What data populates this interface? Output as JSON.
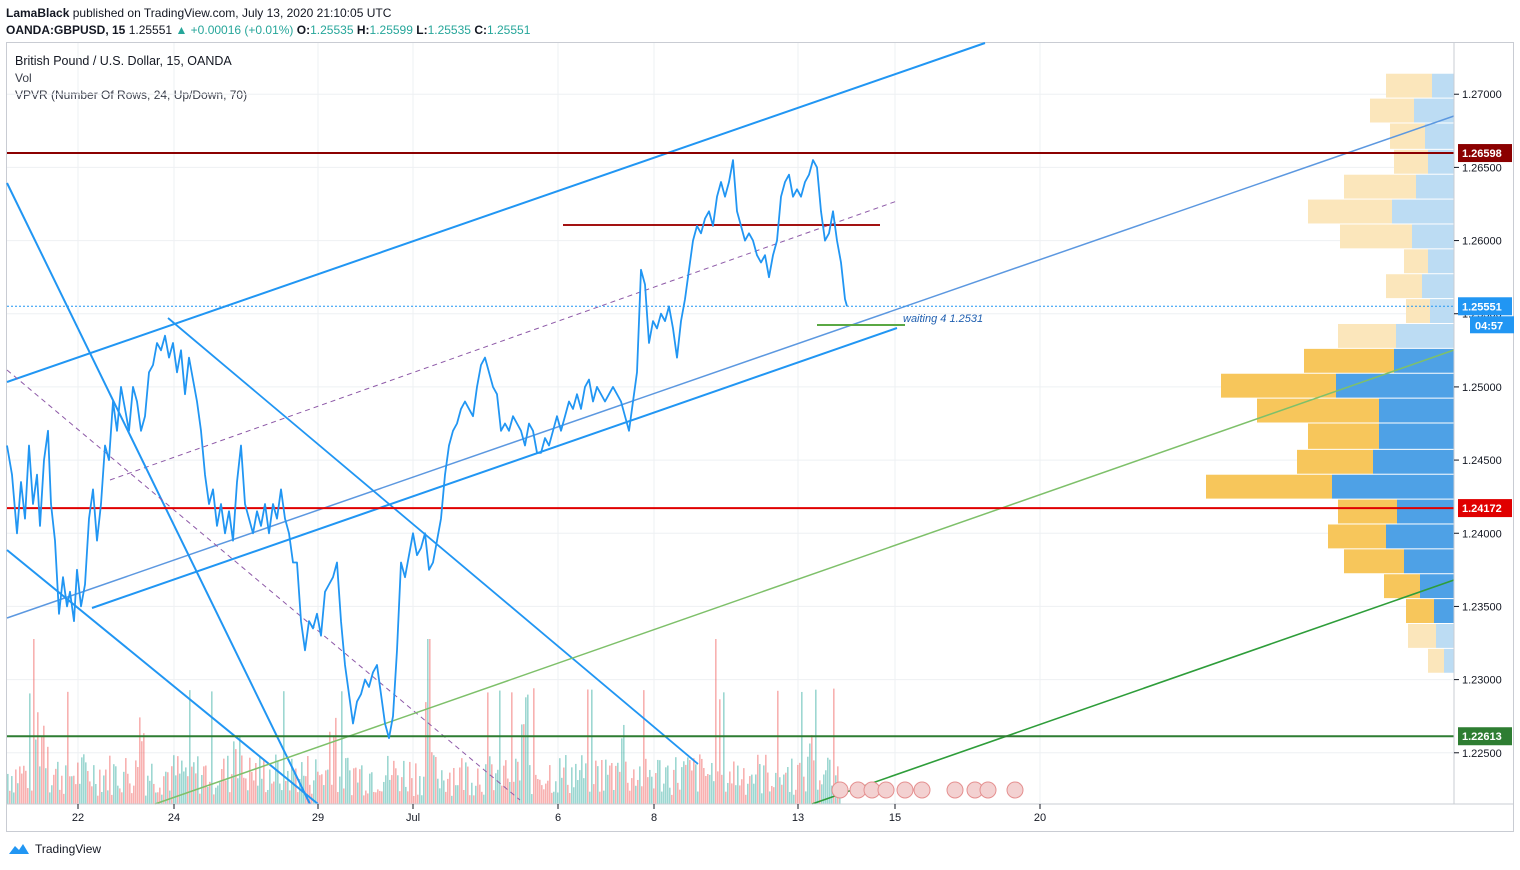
{
  "header": {
    "publisher": "LamaBlack",
    "published_text": "published on TradingView.com, July 13, 2020 21:10:05 UTC",
    "symbol": "OANDA:GBPUSD, 15",
    "last": "1.25551",
    "change": "+0.00016 (+0.01%)",
    "o_label": "O:",
    "o": "1.25535",
    "h_label": "H:",
    "h": "1.25599",
    "l_label": "L:",
    "l": "1.25535",
    "c_label": "C:",
    "c": "1.25551"
  },
  "legend": {
    "title": "British Pound / U.S. Dollar, 15, OANDA",
    "vol": "Vol",
    "vpvr": "VPVR (Number Of Rows, 24, Up/Down, 70)"
  },
  "annotation": "waiting 4 1.2531",
  "countdown": "04:57",
  "brand": "TradingView",
  "colors": {
    "price_line": "#2196f3",
    "resistance": "#8b0000",
    "support_red": "#e00000",
    "support_green": "#2e7d32"
  },
  "chart_data": {
    "type": "line",
    "ylim": [
      1.2215,
      1.2735
    ],
    "y_ticks": [
      "1.22500",
      "1.23000",
      "1.23500",
      "1.24000",
      "1.24500",
      "1.25000",
      "1.25500",
      "1.26000",
      "1.26500",
      "1.27000"
    ],
    "x_ticks": [
      "22",
      "24",
      "29",
      "Jul",
      "6",
      "8",
      "13",
      "15",
      "20"
    ],
    "levels": [
      {
        "value": 1.26598,
        "label": "1.26598",
        "color": "#8b0000"
      },
      {
        "value": 1.25551,
        "label": "1.25551",
        "color": "#2196f3"
      },
      {
        "value": 1.24172,
        "label": "1.24172",
        "color": "#e00000"
      },
      {
        "value": 1.22613,
        "label": "1.22613",
        "color": "#2e7d32"
      }
    ],
    "price_path": [
      [
        0,
        1.246
      ],
      [
        5,
        1.244
      ],
      [
        10,
        1.24
      ],
      [
        14,
        1.2435
      ],
      [
        18,
        1.241
      ],
      [
        22,
        1.246
      ],
      [
        26,
        1.242
      ],
      [
        30,
        1.244
      ],
      [
        33,
        1.2405
      ],
      [
        37,
        1.245
      ],
      [
        41,
        1.247
      ],
      [
        44,
        1.242
      ],
      [
        48,
        1.2395
      ],
      [
        52,
        1.2345
      ],
      [
        56,
        1.237
      ],
      [
        60,
        1.235
      ],
      [
        63,
        1.236
      ],
      [
        67,
        1.234
      ],
      [
        70,
        1.2375
      ],
      [
        74,
        1.235
      ],
      [
        78,
        1.2365
      ],
      [
        82,
        1.241
      ],
      [
        86,
        1.243
      ],
      [
        90,
        1.2395
      ],
      [
        94,
        1.242
      ],
      [
        98,
        1.246
      ],
      [
        102,
        1.245
      ],
      [
        106,
        1.249
      ],
      [
        110,
        1.247
      ],
      [
        114,
        1.25
      ],
      [
        118,
        1.2485
      ],
      [
        122,
        1.247
      ],
      [
        126,
        1.25
      ],
      [
        130,
        1.249
      ],
      [
        134,
        1.247
      ],
      [
        138,
        1.248
      ],
      [
        142,
        1.251
      ],
      [
        146,
        1.2515
      ],
      [
        150,
        1.253
      ],
      [
        154,
        1.2525
      ],
      [
        158,
        1.2535
      ],
      [
        162,
        1.252
      ],
      [
        166,
        1.253
      ],
      [
        170,
        1.251
      ],
      [
        174,
        1.2525
      ],
      [
        178,
        1.2495
      ],
      [
        182,
        1.252
      ],
      [
        186,
        1.2505
      ],
      [
        190,
        1.249
      ],
      [
        194,
        1.247
      ],
      [
        198,
        1.244
      ],
      [
        202,
        1.242
      ],
      [
        206,
        1.243
      ],
      [
        210,
        1.2405
      ],
      [
        214,
        1.242
      ],
      [
        218,
        1.24
      ],
      [
        222,
        1.2415
      ],
      [
        226,
        1.2395
      ],
      [
        230,
        1.2435
      ],
      [
        234,
        1.246
      ],
      [
        238,
        1.242
      ],
      [
        242,
        1.241
      ],
      [
        246,
        1.24
      ],
      [
        250,
        1.2415
      ],
      [
        254,
        1.2405
      ],
      [
        258,
        1.242
      ],
      [
        262,
        1.24
      ],
      [
        266,
        1.242
      ],
      [
        270,
        1.241
      ],
      [
        274,
        1.243
      ],
      [
        278,
        1.241
      ],
      [
        282,
        1.24
      ],
      [
        286,
        1.238
      ],
      [
        290,
        1.238
      ],
      [
        294,
        1.234
      ],
      [
        298,
        1.232
      ],
      [
        302,
        1.234
      ],
      [
        306,
        1.2335
      ],
      [
        310,
        1.2345
      ],
      [
        314,
        1.233
      ],
      [
        318,
        1.236
      ],
      [
        322,
        1.2365
      ],
      [
        326,
        1.237
      ],
      [
        330,
        1.238
      ],
      [
        334,
        1.234
      ],
      [
        338,
        1.231
      ],
      [
        342,
        1.229
      ],
      [
        346,
        1.227
      ],
      [
        350,
        1.2285
      ],
      [
        354,
        1.229
      ],
      [
        358,
        1.23
      ],
      [
        362,
        1.2295
      ],
      [
        366,
        1.2305
      ],
      [
        370,
        1.231
      ],
      [
        374,
        1.229
      ],
      [
        378,
        1.227
      ],
      [
        382,
        1.226
      ],
      [
        386,
        1.2275
      ],
      [
        390,
        1.232
      ],
      [
        394,
        1.238
      ],
      [
        398,
        1.237
      ],
      [
        402,
        1.2385
      ],
      [
        406,
        1.24
      ],
      [
        410,
        1.2385
      ],
      [
        414,
        1.239
      ],
      [
        418,
        1.24
      ],
      [
        422,
        1.2375
      ],
      [
        426,
        1.238
      ],
      [
        430,
        1.2395
      ],
      [
        434,
        1.241
      ],
      [
        438,
        1.244
      ],
      [
        442,
        1.246
      ],
      [
        446,
        1.247
      ],
      [
        450,
        1.2475
      ],
      [
        454,
        1.2485
      ],
      [
        458,
        1.249
      ],
      [
        462,
        1.2485
      ],
      [
        466,
        1.248
      ],
      [
        470,
        1.25
      ],
      [
        474,
        1.2515
      ],
      [
        478,
        1.252
      ],
      [
        482,
        1.251
      ],
      [
        486,
        1.25
      ],
      [
        490,
        1.2495
      ],
      [
        494,
        1.247
      ],
      [
        498,
        1.2475
      ],
      [
        502,
        1.247
      ],
      [
        506,
        1.248
      ],
      [
        510,
        1.2475
      ],
      [
        514,
        1.247
      ],
      [
        518,
        1.246
      ],
      [
        522,
        1.2475
      ],
      [
        526,
        1.247
      ],
      [
        530,
        1.2455
      ],
      [
        534,
        1.2455
      ],
      [
        538,
        1.2465
      ],
      [
        542,
        1.246
      ],
      [
        546,
        1.247
      ],
      [
        550,
        1.248
      ],
      [
        554,
        1.247
      ],
      [
        558,
        1.248
      ],
      [
        562,
        1.249
      ],
      [
        566,
        1.2485
      ],
      [
        570,
        1.2495
      ],
      [
        574,
        1.2485
      ],
      [
        578,
        1.25
      ],
      [
        582,
        1.2505
      ],
      [
        586,
        1.249
      ],
      [
        590,
        1.25
      ],
      [
        594,
        1.2495
      ],
      [
        598,
        1.249
      ],
      [
        602,
        1.2495
      ],
      [
        606,
        1.25
      ],
      [
        610,
        1.2495
      ],
      [
        614,
        1.249
      ],
      [
        618,
        1.248
      ],
      [
        622,
        1.247
      ],
      [
        626,
        1.249
      ],
      [
        630,
        1.251
      ],
      [
        634,
        1.258
      ],
      [
        638,
        1.257
      ],
      [
        642,
        1.253
      ],
      [
        646,
        1.2545
      ],
      [
        650,
        1.254
      ],
      [
        654,
        1.255
      ],
      [
        658,
        1.2545
      ],
      [
        662,
        1.2555
      ],
      [
        666,
        1.254
      ],
      [
        670,
        1.252
      ],
      [
        674,
        1.2545
      ],
      [
        678,
        1.256
      ],
      [
        682,
        1.258
      ],
      [
        686,
        1.26
      ],
      [
        690,
        1.261
      ],
      [
        694,
        1.2605
      ],
      [
        698,
        1.2615
      ],
      [
        702,
        1.262
      ],
      [
        706,
        1.261
      ],
      [
        710,
        1.263
      ],
      [
        714,
        1.264
      ],
      [
        718,
        1.263
      ],
      [
        722,
        1.264
      ],
      [
        726,
        1.2655
      ],
      [
        730,
        1.262
      ],
      [
        734,
        1.261
      ],
      [
        738,
        1.26
      ],
      [
        742,
        1.2605
      ],
      [
        746,
        1.26
      ],
      [
        750,
        1.259
      ],
      [
        754,
        1.2585
      ],
      [
        758,
        1.259
      ],
      [
        762,
        1.2575
      ],
      [
        766,
        1.259
      ],
      [
        770,
        1.26
      ],
      [
        774,
        1.263
      ],
      [
        778,
        1.264
      ],
      [
        782,
        1.2645
      ],
      [
        786,
        1.263
      ],
      [
        790,
        1.2635
      ],
      [
        794,
        1.263
      ],
      [
        798,
        1.264
      ],
      [
        802,
        1.2645
      ],
      [
        806,
        1.2655
      ],
      [
        810,
        1.265
      ],
      [
        814,
        1.262
      ],
      [
        818,
        1.26
      ],
      [
        822,
        1.2605
      ],
      [
        826,
        1.262
      ],
      [
        830,
        1.26
      ],
      [
        834,
        1.2585
      ],
      [
        838,
        1.256
      ],
      [
        840,
        1.25551
      ]
    ],
    "annotation_price": 1.2531
  }
}
